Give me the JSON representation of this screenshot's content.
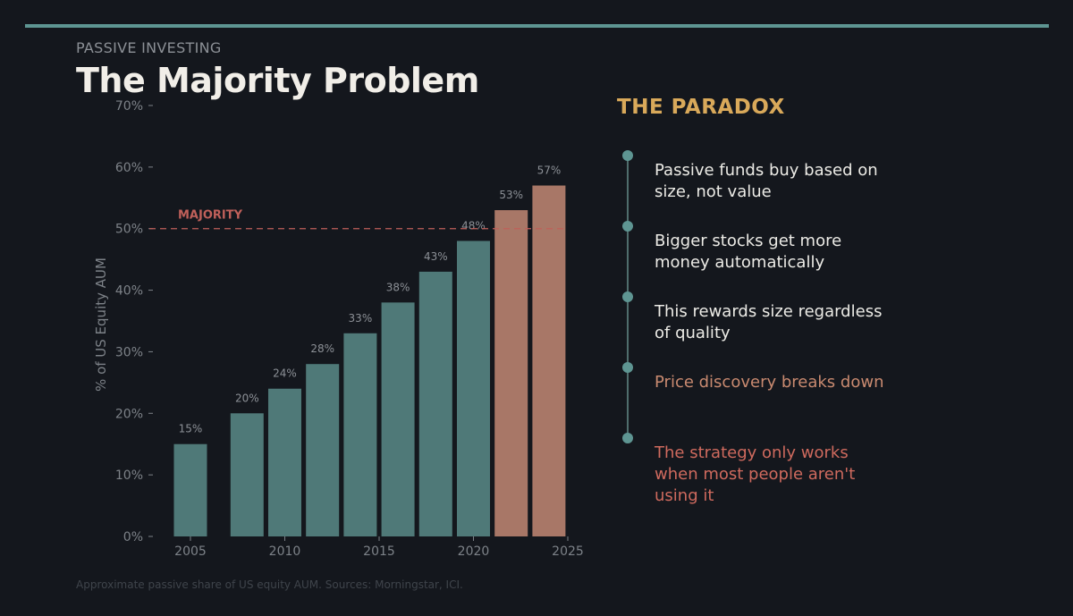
{
  "header": {
    "eyebrow": "PASSIVE INVESTING",
    "title": "The Majority Problem"
  },
  "chart_data": {
    "type": "bar",
    "x": [
      2005,
      2008,
      2010,
      2012,
      2014,
      2016,
      2018,
      2020,
      2022,
      2024
    ],
    "values": [
      15,
      20,
      24,
      28,
      33,
      38,
      43,
      48,
      53,
      57
    ],
    "value_labels": [
      "15%",
      "20%",
      "24%",
      "28%",
      "33%",
      "38%",
      "43%",
      "48%",
      "53%",
      "57%"
    ],
    "ylabel": "% of US Equity AUM",
    "xlabel": "",
    "ylim": [
      0,
      70
    ],
    "xlim": [
      2003.2,
      2025
    ],
    "yticks": [
      0,
      10,
      20,
      30,
      40,
      50,
      60,
      70
    ],
    "ytick_labels": [
      "0%",
      "10%",
      "20%",
      "30%",
      "40%",
      "50%",
      "60%",
      "70%"
    ],
    "xticks": [
      2005,
      2010,
      2015,
      2020,
      2025
    ],
    "xtick_labels": [
      "2005",
      "2010",
      "2015",
      "2020",
      "2025"
    ],
    "reference_line": {
      "value": 50,
      "label": "MAJORITY",
      "color": "#c0605a"
    },
    "highlight_from_index": 8,
    "colors": {
      "base": "#4f7978",
      "highlight": "#a87767",
      "label": "#8c9096",
      "axis": "#7d8288"
    },
    "grid": false
  },
  "paradox": {
    "title": "THE PARADOX",
    "items": [
      {
        "text": "Passive funds buy based on size, not value",
        "color": "#ecebe6"
      },
      {
        "text": "Bigger stocks get more money automatically",
        "color": "#ecebe6"
      },
      {
        "text": "This rewards size regardless of quality",
        "color": "#ecebe6"
      },
      {
        "text": "Price discovery breaks down",
        "color": "#c98a70"
      },
      {
        "text": "The strategy only works when most people aren't using it",
        "color": "#cf6a5e"
      }
    ]
  },
  "footnote": "Approximate passive share of US equity AUM. Sources: Morningstar, ICI."
}
